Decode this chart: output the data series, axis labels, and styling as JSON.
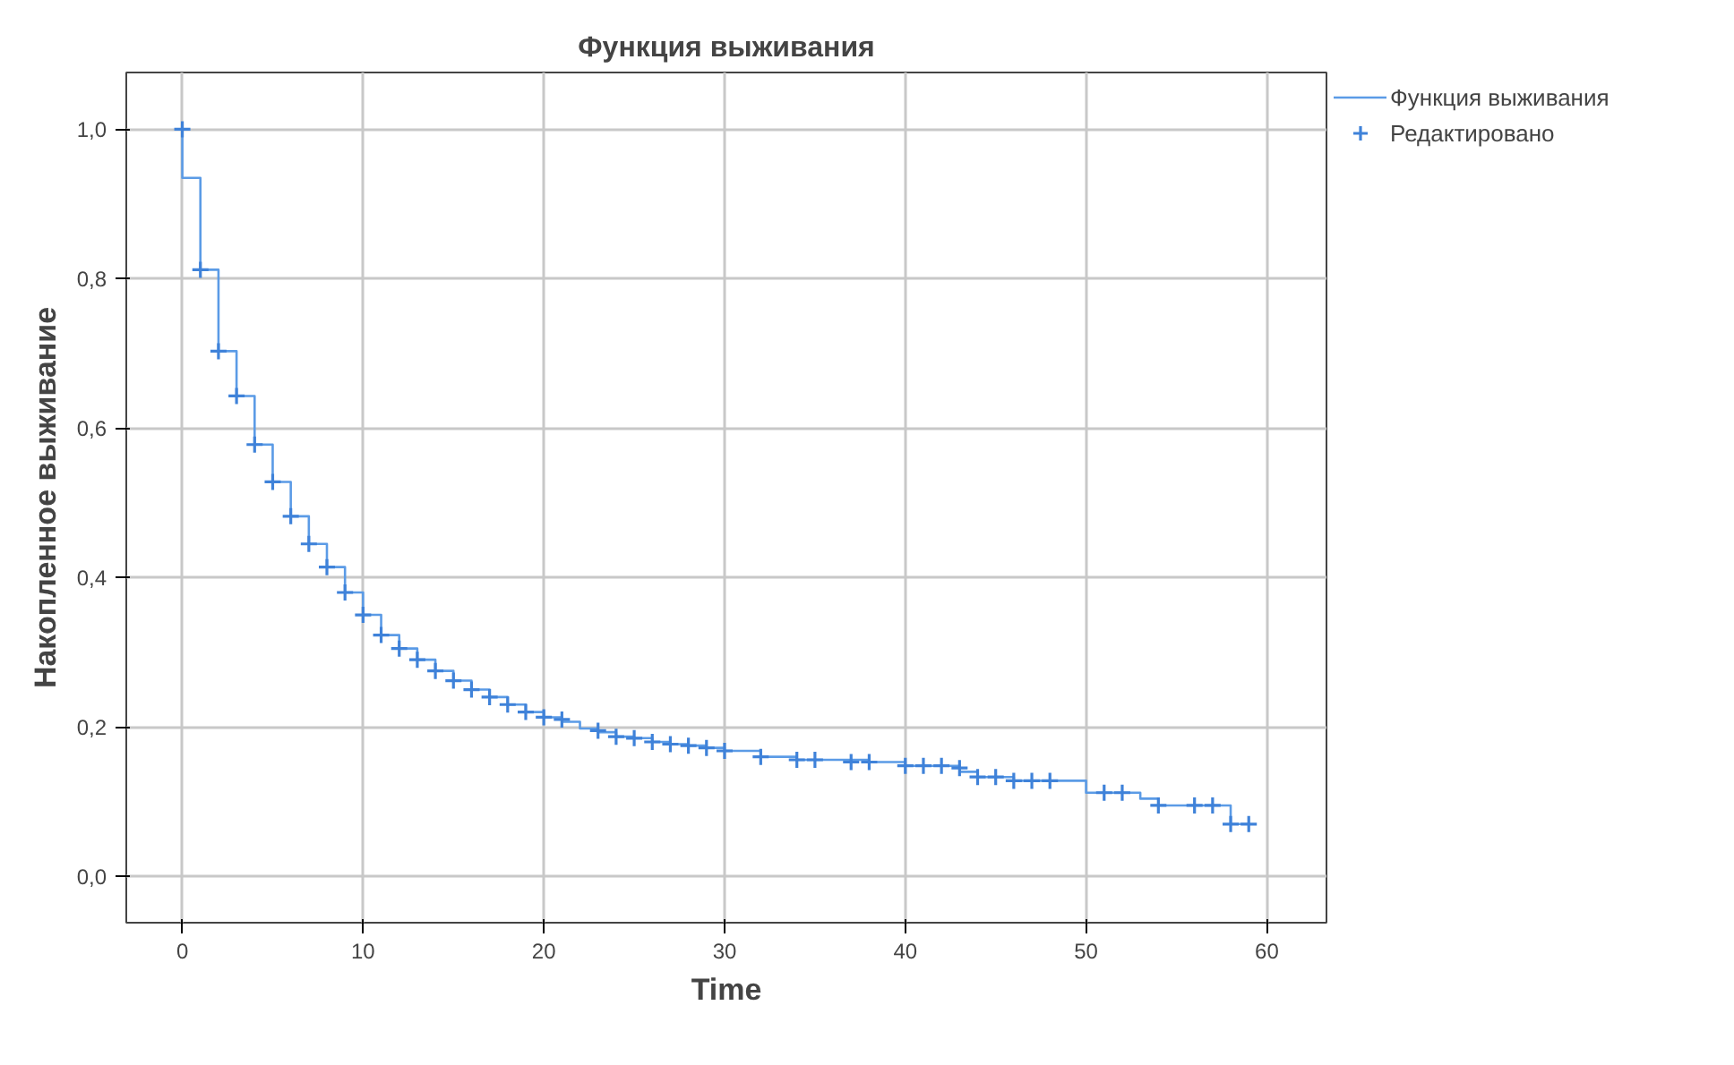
{
  "chart_data": {
    "type": "step",
    "title": "Функция выживания",
    "xlabel": "Time",
    "ylabel": "Накопленное выживание",
    "xlim": [
      -3.1,
      63.3
    ],
    "ylim": [
      -0.062,
      1.076
    ],
    "xticks": [
      0,
      10,
      20,
      30,
      40,
      50,
      60
    ],
    "yticks": [
      {
        "value": 0,
        "label": "0,0"
      },
      {
        "value": 0.2,
        "label": "0,2"
      },
      {
        "value": 0.4,
        "label": "0,4"
      },
      {
        "value": 0.6,
        "label": "0,6"
      },
      {
        "value": 0.8,
        "label": "0,8"
      },
      {
        "value": 1,
        "label": "1,0"
      }
    ],
    "grid": true,
    "legend": "top right",
    "series": [
      {
        "name": "Функция выживания",
        "color": "#5b9be6",
        "x": [
          0,
          0,
          1,
          2,
          3,
          4,
          5,
          6,
          7,
          8,
          9,
          10,
          11,
          12,
          13,
          14,
          15,
          16,
          17,
          18,
          19,
          20,
          21,
          22,
          23,
          24,
          25,
          26,
          27,
          28,
          29,
          30,
          32,
          34,
          38,
          40,
          43,
          44,
          46,
          50,
          53,
          54,
          58,
          59
        ],
        "values": [
          1.0,
          0.935,
          0.812,
          0.703,
          0.643,
          0.578,
          0.528,
          0.482,
          0.445,
          0.414,
          0.38,
          0.35,
          0.323,
          0.305,
          0.29,
          0.275,
          0.262,
          0.25,
          0.24,
          0.23,
          0.22,
          0.213,
          0.207,
          0.198,
          0.193,
          0.187,
          0.185,
          0.18,
          0.177,
          0.175,
          0.172,
          0.168,
          0.16,
          0.156,
          0.153,
          0.148,
          0.14,
          0.133,
          0.128,
          0.112,
          0.104,
          0.095,
          0.07,
          0.07
        ]
      },
      {
        "name": "Редактировано",
        "type": "scatter",
        "marker": "cross",
        "color": "#3f82d9",
        "x": [
          0,
          1,
          2,
          3,
          4,
          5,
          6,
          7,
          8,
          9,
          10,
          11,
          12,
          13,
          14,
          15,
          16,
          17,
          18,
          19,
          20,
          21,
          23,
          24,
          25,
          26,
          27,
          28,
          29,
          30,
          32,
          34,
          35,
          37,
          38,
          40,
          41,
          42,
          43,
          44,
          45,
          46,
          47,
          48,
          51,
          52,
          54,
          56,
          57,
          58,
          59
        ],
        "values": [
          1.0,
          0.812,
          0.703,
          0.643,
          0.578,
          0.528,
          0.482,
          0.445,
          0.414,
          0.38,
          0.35,
          0.323,
          0.305,
          0.29,
          0.275,
          0.262,
          0.25,
          0.24,
          0.23,
          0.22,
          0.213,
          0.21,
          0.195,
          0.187,
          0.185,
          0.18,
          0.177,
          0.175,
          0.172,
          0.168,
          0.16,
          0.156,
          0.156,
          0.153,
          0.153,
          0.148,
          0.148,
          0.148,
          0.145,
          0.133,
          0.133,
          0.128,
          0.128,
          0.128,
          0.112,
          0.112,
          0.095,
          0.095,
          0.095,
          0.07,
          0.07
        ]
      }
    ]
  }
}
